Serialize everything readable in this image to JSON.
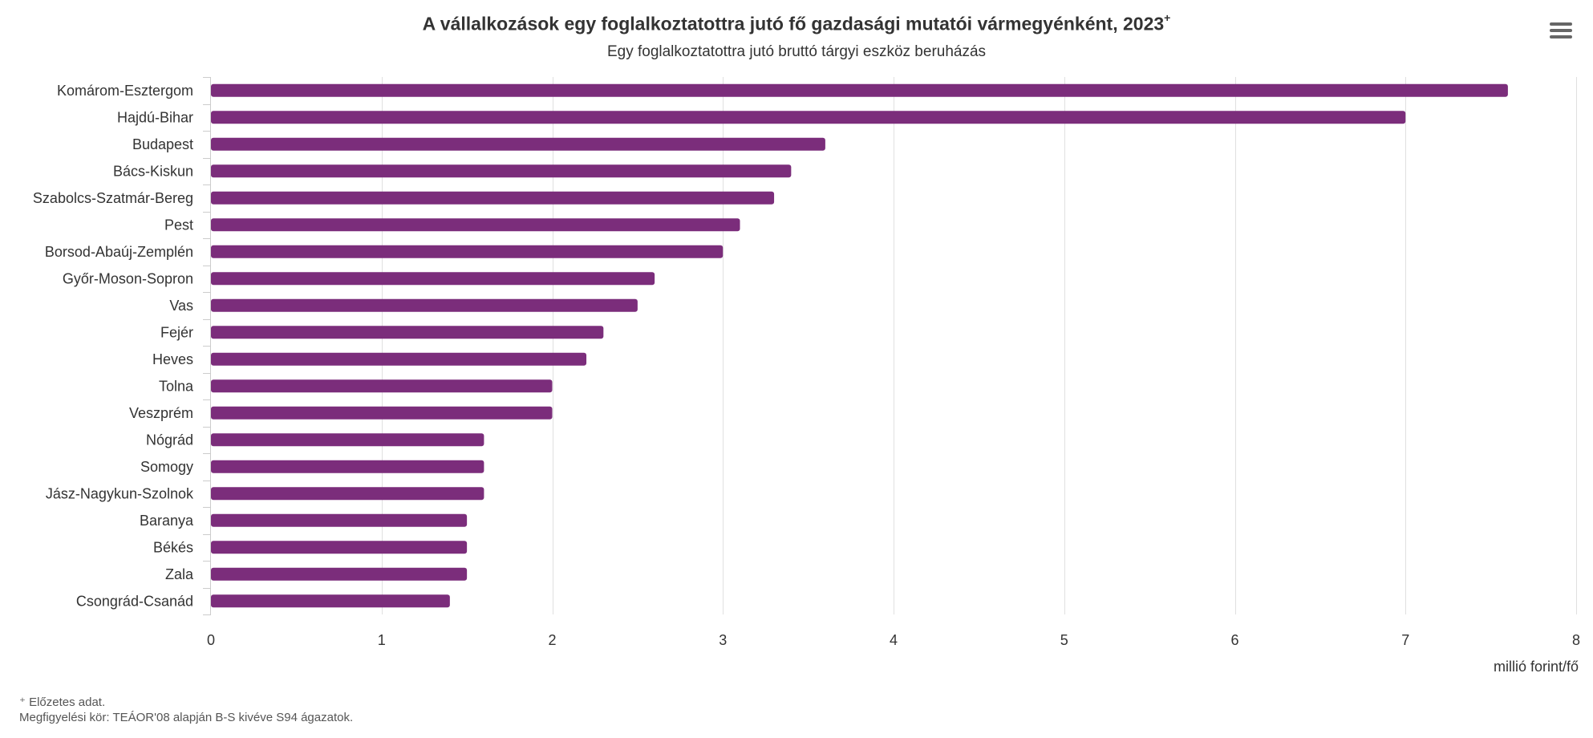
{
  "header": {
    "title": "A vállalkozások egy foglalkoztatottra jutó fő gazdasági mutatói vármegyénként, 2023",
    "title_sup": "+",
    "subtitle": "Egy foglalkoztatottra jutó bruttó tárgyi eszköz beruházás",
    "menu_icon": "hamburger-menu-icon"
  },
  "footnotes": {
    "preliminary": "⁺ Előzetes adat.",
    "scope": "Megfigyelési kör: TEÁOR'08 alapján B-S kivéve S94 ágazatok."
  },
  "colors": {
    "bar": "#7b2d7b",
    "grid": "#e0e0e0",
    "axis": "#cccccc",
    "text": "#333333"
  },
  "chart_data": {
    "type": "bar",
    "orientation": "horizontal",
    "title": "A vállalkozások egy foglalkoztatottra jutó fő gazdasági mutatói vármegyénként, 2023⁺",
    "subtitle": "Egy foglalkoztatottra jutó bruttó tárgyi eszköz beruházás",
    "xlabel": "millió forint/fő",
    "ylabel": "",
    "xlim": [
      0,
      8
    ],
    "ticks": [
      0,
      1,
      2,
      3,
      4,
      5,
      6,
      7,
      8
    ],
    "grid": true,
    "legend": false,
    "categories": [
      "Komárom-Esztergom",
      "Hajdú-Bihar",
      "Budapest",
      "Bács-Kiskun",
      "Szabolcs-Szatmár-Bereg",
      "Pest",
      "Borsod-Abaúj-Zemplén",
      "Győr-Moson-Sopron",
      "Vas",
      "Fejér",
      "Heves",
      "Tolna",
      "Veszprém",
      "Nógrád",
      "Somogy",
      "Jász-Nagykun-Szolnok",
      "Baranya",
      "Békés",
      "Zala",
      "Csongrád-Csanád"
    ],
    "values": [
      7.6,
      7.0,
      3.6,
      3.4,
      3.3,
      3.1,
      3.0,
      2.6,
      2.5,
      2.3,
      2.2,
      2.0,
      2.0,
      1.6,
      1.6,
      1.6,
      1.5,
      1.5,
      1.5,
      1.4
    ]
  }
}
